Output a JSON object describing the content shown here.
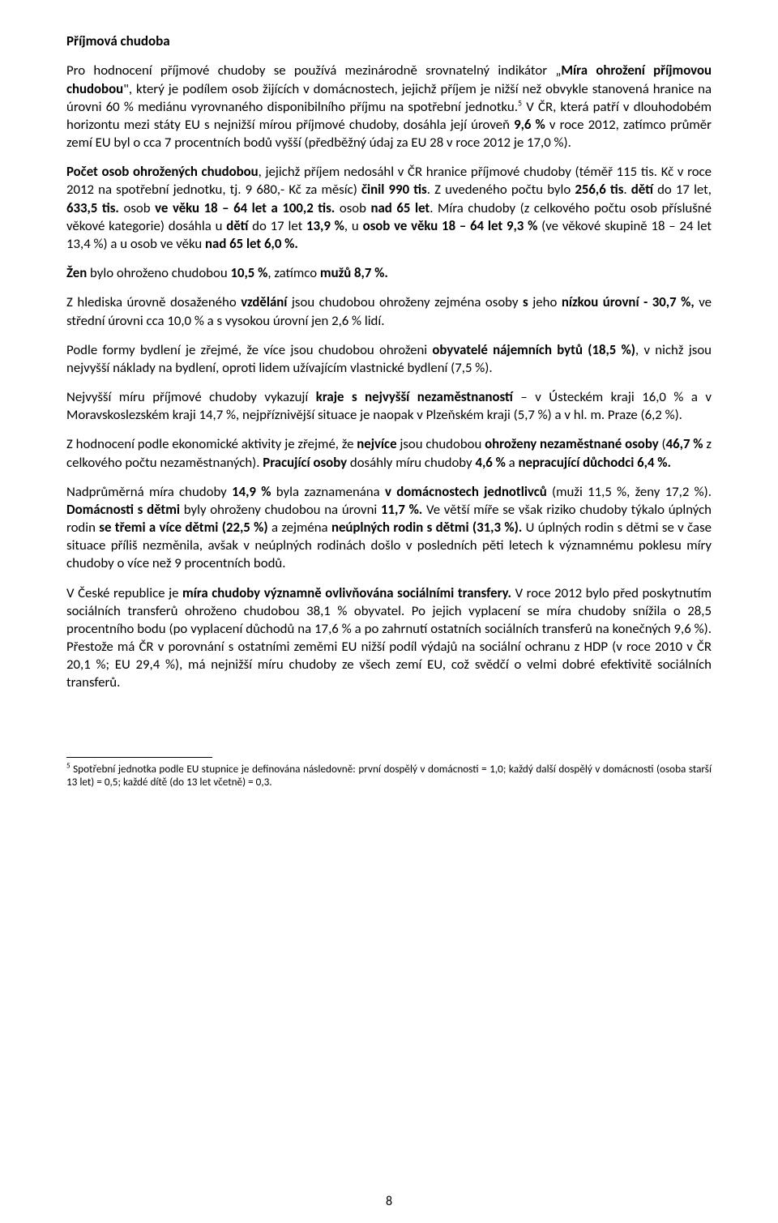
{
  "title": "Příjmová chudoba",
  "paragraphs": {
    "p1_a": "Pro hodnocení příjmové chudoby se používá mezinárodně srovnatelný indikátor „",
    "p1_b": "Míra ohrožení příjmovou chudobou",
    "p1_c": ", který je podílem osob žijících v domácnostech, jejichž příjem je nižší než obvykle stanovená hranice na úrovni 60 % mediánu vyrovnaného disponibilního příjmu na spotřební jednotku.",
    "p1_fn": "5",
    "p2_a": " V ČR, která patří v dlouhodobém horizontu mezi státy EU s nejnižší mírou příjmové chudoby, dosáhla její úroveň ",
    "p2_b": "9,6 %",
    "p2_c": " v roce 2012, zatímco průměr zemí EU byl o cca 7 procentních bodů vyšší (předběžný údaj za EU 28 v roce 2012 je 17,0 %).",
    "p3_a": "Počet osob ohrožených chudobou",
    "p3_b": ", jejichž příjem nedosáhl v ČR hranice příjmové chudoby (téměř 115 tis. Kč v roce 2012 na spotřební jednotku, tj. 9 680,- Kč za měsíc) ",
    "p3_c": "činil",
    "p3_d": " 990 tis",
    "p3_e": ". Z uvedeného počtu bylo ",
    "p3_f": "256,6 tis",
    "p3_g": ". ",
    "p3_h": "dětí",
    "p3_i": " do 17 let, ",
    "p3_j": "633,5 tis.",
    "p3_k": " osob ",
    "p3_l": "ve věku 18 – 64 let a 100,2 tis.",
    "p3_m": " osob ",
    "p3_n": "nad 65 let",
    "p3_o": ". Míra chudoby (z celkového počtu osob příslušné věkové kategorie) dosáhla u ",
    "p3_p": "dětí",
    "p3_q": " do 17 let ",
    "p3_r": "13,9 %",
    "p3_s": ", u ",
    "p3_t": "osob ve věku 18 – 64 let 9,3 %",
    "p3_u": " (ve věkové skupině 18 – 24 let 13,4 %) a u osob ve věku ",
    "p3_v": "nad 65 let 6,0 %.",
    "p4_a": "Žen",
    "p4_b": " bylo ohroženo chudobou ",
    "p4_c": "10,5 %",
    "p4_d": ", zatímco ",
    "p4_e": "mužů 8,7 %.",
    "p5_a": "Z hlediska úrovně dosaženého ",
    "p5_b": "vzdělání",
    "p5_c": " jsou chudobou ohroženy zejména osoby ",
    "p5_d": "s",
    "p5_e": " jeho ",
    "p5_f": "nízkou úrovní - 30,7 %,",
    "p5_g": " ve střední úrovni cca 10,0 % a s vysokou úrovní jen 2,6 % lidí.",
    "p6_a": "Podle formy bydlení je zřejmé, že více jsou chudobou ohroženi ",
    "p6_b": "obyvatelé nájemních bytů (18,5 %)",
    "p6_c": ", v nichž jsou nejvyšší náklady na bydlení, oproti lidem užívajícím vlastnické bydlení (7,5 %).",
    "p7_a": "Nejvyšší míru příjmové chudoby vykazují ",
    "p7_b": "kraje s nejvyšší nezaměstnaností",
    "p7_c": " – v Ústeckém kraji 16,0 % a v Moravskoslezském kraji 14,7 %, nejpříznivější situace je naopak v Plzeňském kraji (5,7 %) a v hl. m. Praze (6,2 %).",
    "p8_a": "Z hodnocení podle ekonomické aktivity je zřejmé, že ",
    "p8_b": "nejvíce",
    "p8_c": " jsou chudobou ",
    "p8_d": "ohroženy nezaměstnané osoby",
    "p8_e": " (",
    "p8_f": "46,7 %",
    "p8_g": " z celkového počtu nezaměstnaných). ",
    "p8_h": "Pracující osoby",
    "p8_i": " dosáhly míru chudoby ",
    "p8_j": "4,6 %",
    "p8_k": " a ",
    "p8_l": "nepracující důchodci 6,4 %.",
    "p9_a": "Nadprůměrná míra chudoby ",
    "p9_b": "14,9 %",
    "p9_c": " byla zaznamenána ",
    "p9_d": "v domácnostech jednotlivců",
    "p9_e": " (muži 11,5 %, ženy 17,2 %). ",
    "p9_f": "Domácnosti s dětmi",
    "p9_g": " byly ohroženy chudobou na úrovni ",
    "p9_h": "11,7 %.",
    "p9_i": " Ve větší míře se však riziko chudoby týkalo úplných rodin ",
    "p9_j": "se třemi a více dětmi (22,5 %)",
    "p9_k": " a zejména ",
    "p9_l": "neúplných rodin s dětmi (31,3 %).",
    "p9_m": " U úplných rodin s dětmi se v čase situace příliš nezměnila, avšak v neúplných rodinách došlo v posledních pěti letech k významnému poklesu míry chudoby o více než 9 procentních bodů.",
    "p10_a": "V České republice je ",
    "p10_b": "míra chudoby významně ovlivňována sociálními transfery.",
    "p10_c": " V roce 2012 bylo před poskytnutím sociálních transferů ohroženo chudobou 38,1 % obyvatel. Po jejich vyplacení se míra chudoby snížila o 28,5 procentního bodu (po vyplacení důchodů na 17,6 % a po zahrnutí ostatních sociálních transferů na konečných 9,6 %). Přestože má ČR v porovnání s ostatními zeměmi EU nižší podíl výdajů na sociální ochranu z HDP (v roce 2010 v ČR 20,1 %; EU 29,4 %), má nejnižší míru chudoby ze všech zemí EU, což svědčí o velmi dobré efektivitě sociálních transferů."
  },
  "footnote": {
    "num": "5",
    "text": " Spotřební jednotka podle EU stupnice je definována následovně: první dospělý v domácnosti = 1,0; každý další dospělý v domácnosti (osoba starší 13 let) = 0,5; každé dítě (do 13 let včetně) = 0,3."
  },
  "page_number": "8"
}
